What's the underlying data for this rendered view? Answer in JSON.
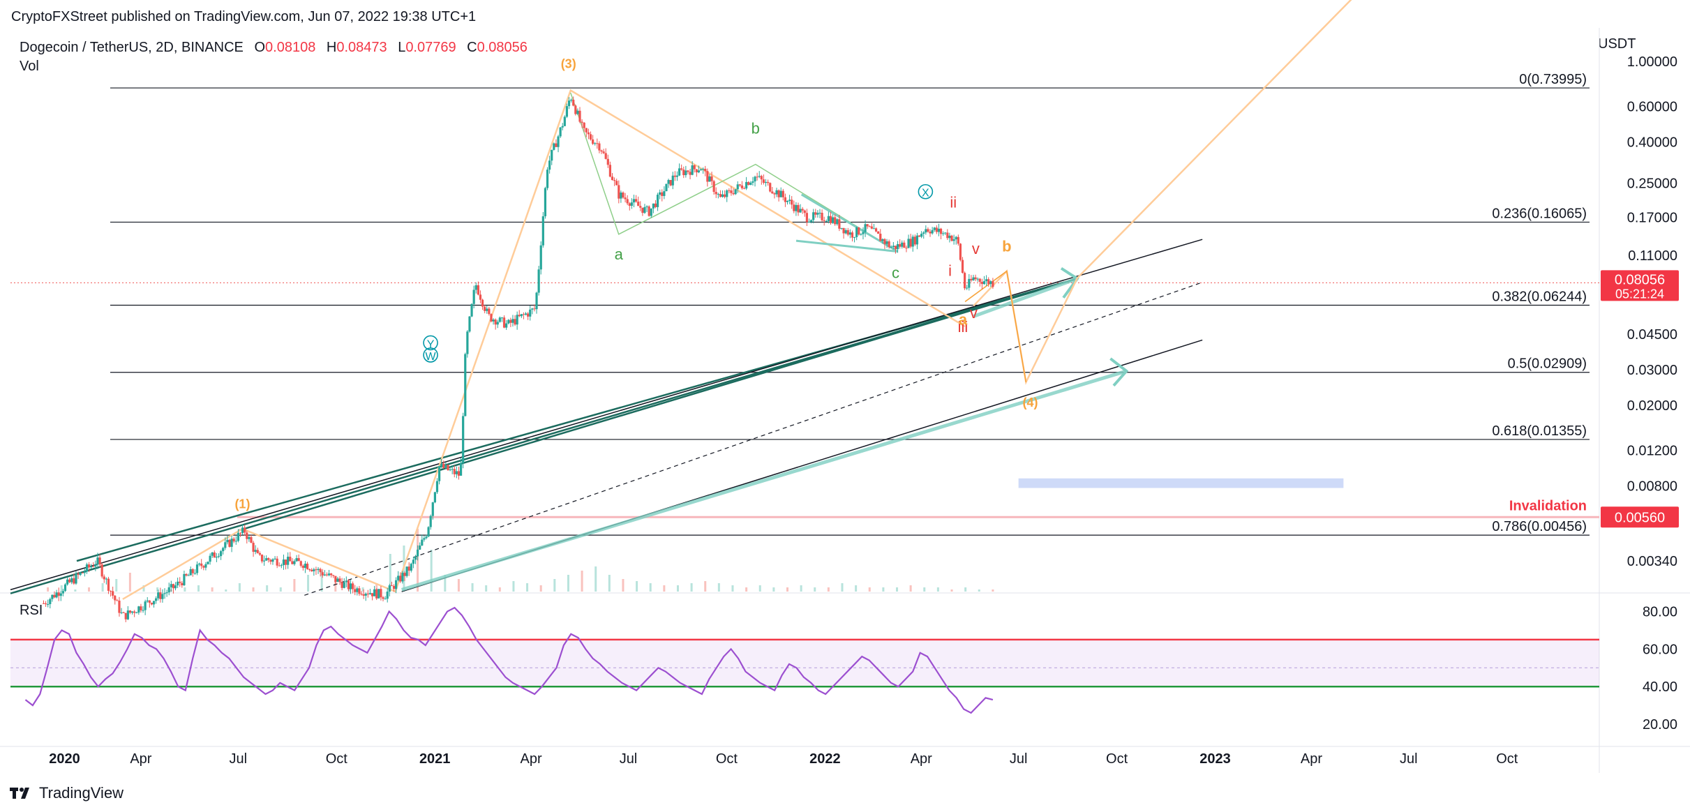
{
  "header": {
    "published": "CryptoFXStreet published on TradingView.com, Jun 07, 2022 19:38 UTC+1"
  },
  "symbol": {
    "name": "Dogecoin / TetherUS, 2D, BINANCE",
    "o_label": "O",
    "o_value": "0.08108",
    "h_label": "H",
    "h_value": "0.08473",
    "l_label": "L",
    "l_value": "0.07769",
    "c_label": "C",
    "c_value": "0.08056",
    "vol_label": "Vol",
    "rsi_label": "RSI",
    "currency": "USDT"
  },
  "footer": {
    "brand": "TradingView"
  },
  "colors": {
    "up": "#26a69a",
    "down": "#ef5350",
    "rsi": "#9c4fd0",
    "rsi_upper": "#f23645",
    "rsi_lower": "#22983c",
    "wave_orange": "#f7a33b",
    "wave_green": "#43a047",
    "wave_red": "#e53935",
    "wave_teal": "#0097a7",
    "projection": "#ffcc99",
    "channel": "#1b6b5e",
    "arrow": "#7fcfc2",
    "zone": "#c5d3f7",
    "invalidation": "#f23645"
  },
  "chart_data": {
    "type": "candlestick",
    "scale": "log",
    "price_axis": {
      "ticks": [
        "1.00000",
        "0.60000",
        "0.40000",
        "0.25000",
        "0.17000",
        "0.11000",
        "0.04500",
        "0.03000",
        "0.02000",
        "0.01200",
        "0.00800",
        "0.00340"
      ],
      "values": [
        1.0,
        0.6,
        0.4,
        0.25,
        0.17,
        0.11,
        0.045,
        0.03,
        0.02,
        0.012,
        0.008,
        0.0034
      ],
      "current_price": "0.08056",
      "countdown": "05:21:24",
      "invalidation_price": "0.00560",
      "invalidation_label": "Invalidation"
    },
    "time_axis": {
      "ticks": [
        "2020",
        "Apr",
        "Jul",
        "Oct",
        "2021",
        "Apr",
        "Jul",
        "Oct",
        "2022",
        "Apr",
        "Jul",
        "Oct",
        "2023",
        "Apr",
        "Jul",
        "Oct"
      ],
      "bold": [
        true,
        false,
        false,
        false,
        true,
        false,
        false,
        false,
        true,
        false,
        false,
        false,
        true,
        false,
        false,
        false
      ]
    },
    "fibonacci": [
      {
        "label": "0(0.73995)",
        "price": 0.73995
      },
      {
        "label": "0.236(0.16065)",
        "price": 0.16065
      },
      {
        "label": "0.382(0.06244)",
        "price": 0.06244
      },
      {
        "label": "0.5(0.02909)",
        "price": 0.02909
      },
      {
        "label": "0.618(0.01355)",
        "price": 0.01355
      },
      {
        "label": "0.786(0.00456)",
        "price": 0.00456
      }
    ],
    "wave_labels": [
      {
        "text": "(1)",
        "color": "orange"
      },
      {
        "text": "(3)",
        "color": "orange"
      },
      {
        "text": "(4)",
        "color": "orange"
      },
      {
        "text": "a",
        "color": "green"
      },
      {
        "text": "b",
        "color": "green"
      },
      {
        "text": "c",
        "color": "green"
      },
      {
        "text": "Y",
        "color": "teal"
      },
      {
        "text": "W",
        "color": "teal"
      },
      {
        "text": "X",
        "color": "teal"
      },
      {
        "text": "i",
        "color": "red"
      },
      {
        "text": "ii",
        "color": "red"
      },
      {
        "text": "iii",
        "color": "red"
      },
      {
        "text": "v",
        "color": "red"
      },
      {
        "text": "v",
        "color": "red"
      },
      {
        "text": "a",
        "color": "orange"
      },
      {
        "text": "b",
        "color": "orange"
      }
    ],
    "price_path": [
      [
        "2020-01-01",
        0.0021
      ],
      [
        "2020-02-20",
        0.0034
      ],
      [
        "2020-03-15",
        0.0018
      ],
      [
        "2020-05-01",
        0.0025
      ],
      [
        "2020-07-07",
        0.0048
      ],
      [
        "2020-07-20",
        0.0035
      ],
      [
        "2020-09-01",
        0.0033
      ],
      [
        "2020-10-15",
        0.0025
      ],
      [
        "2020-11-15",
        0.0023
      ],
      [
        "2020-12-10",
        0.0032
      ],
      [
        "2020-12-25",
        0.0048
      ],
      [
        "2021-01-05",
        0.01
      ],
      [
        "2021-01-25",
        0.009
      ],
      [
        "2021-01-30",
        0.04
      ],
      [
        "2021-02-08",
        0.08
      ],
      [
        "2021-02-20",
        0.055
      ],
      [
        "2021-03-10",
        0.05
      ],
      [
        "2021-04-05",
        0.06
      ],
      [
        "2021-04-16",
        0.3
      ],
      [
        "2021-05-01",
        0.5
      ],
      [
        "2021-05-08",
        0.68
      ],
      [
        "2021-05-20",
        0.45
      ],
      [
        "2021-06-05",
        0.38
      ],
      [
        "2021-06-22",
        0.22
      ],
      [
        "2021-07-20",
        0.18
      ],
      [
        "2021-08-15",
        0.28
      ],
      [
        "2021-09-07",
        0.3
      ],
      [
        "2021-09-25",
        0.21
      ],
      [
        "2021-10-28",
        0.27
      ],
      [
        "2021-11-20",
        0.22
      ],
      [
        "2021-12-15",
        0.17
      ],
      [
        "2022-01-05",
        0.17
      ],
      [
        "2022-01-25",
        0.14
      ],
      [
        "2022-02-10",
        0.15
      ],
      [
        "2022-03-05",
        0.12
      ],
      [
        "2022-03-25",
        0.13
      ],
      [
        "2022-04-05",
        0.15
      ],
      [
        "2022-04-25",
        0.14
      ],
      [
        "2022-05-05",
        0.13
      ],
      [
        "2022-05-12",
        0.075
      ],
      [
        "2022-05-20",
        0.085
      ],
      [
        "2022-06-07",
        0.0806
      ]
    ],
    "rsi": {
      "levels": [
        80,
        60,
        40,
        20
      ],
      "level_labels": [
        "80.00",
        "60.00",
        "40.00",
        "20.00"
      ],
      "upper_band": 65,
      "lower_band": 40,
      "mid": 50,
      "values": [
        33,
        30,
        36,
        50,
        65,
        70,
        68,
        58,
        52,
        45,
        40,
        44,
        47,
        53,
        60,
        68,
        66,
        62,
        60,
        55,
        48,
        40,
        38,
        55,
        70,
        65,
        62,
        58,
        55,
        50,
        45,
        42,
        39,
        36,
        38,
        42,
        40,
        38,
        44,
        50,
        62,
        70,
        72,
        68,
        65,
        62,
        60,
        58,
        65,
        72,
        80,
        76,
        70,
        66,
        65,
        62,
        68,
        74,
        80,
        82,
        78,
        72,
        65,
        60,
        55,
        50,
        45,
        42,
        40,
        38,
        36,
        40,
        45,
        50,
        62,
        68,
        66,
        60,
        55,
        52,
        48,
        45,
        42,
        40,
        38,
        42,
        46,
        50,
        48,
        45,
        42,
        40,
        38,
        36,
        44,
        50,
        56,
        60,
        55,
        48,
        45,
        42,
        40,
        38,
        46,
        52,
        50,
        45,
        42,
        38,
        36,
        40,
        44,
        48,
        52,
        56,
        54,
        50,
        46,
        42,
        40,
        44,
        48,
        58,
        56,
        50,
        44,
        38,
        34,
        28,
        26,
        30,
        34,
        33
      ]
    },
    "volume": {
      "values": [
        2,
        3,
        1,
        2,
        4,
        6,
        9,
        3,
        2,
        1,
        2,
        3,
        2,
        1,
        4,
        2,
        3,
        2,
        6,
        8,
        10,
        5,
        3,
        2,
        4,
        18,
        22,
        30,
        20,
        8,
        6,
        4,
        3,
        2,
        5,
        4,
        3,
        6,
        8,
        10,
        12,
        8,
        6,
        5,
        4,
        3,
        3,
        4,
        5,
        4,
        3,
        2,
        3,
        2,
        2,
        3,
        2,
        2,
        4,
        3,
        2,
        2,
        2,
        3,
        2,
        2,
        1,
        2,
        1,
        1
      ]
    }
  }
}
